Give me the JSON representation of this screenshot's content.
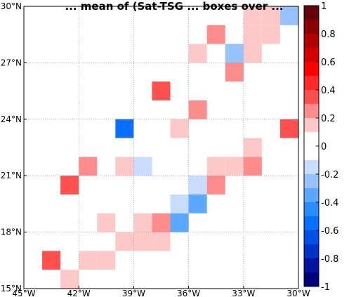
{
  "chart_data": {
    "type": "heatmap",
    "title": "... mean of (Sat-TSG ... boxes over ...",
    "xlabel": "",
    "ylabel": "",
    "x_ticks": [
      "45°W",
      "42°W",
      "39°W",
      "36°W",
      "33°W",
      "30°W"
    ],
    "y_ticks": [
      "15°N",
      "18°N",
      "21°N",
      "24°N",
      "27°N",
      "30°N"
    ],
    "xlim": [
      -45,
      -30
    ],
    "ylim": [
      15,
      30
    ],
    "grid": true,
    "grid_style": "dotted",
    "cell_size_deg": 1,
    "colorbar": {
      "ticks": [
        "1",
        "0.8",
        "0.6",
        "0.4",
        "0.2",
        "0",
        "-0.2",
        "-0.4",
        "-0.6",
        "-0.8",
        "-1"
      ],
      "range": [
        -1,
        1
      ],
      "levels": [
        {
          "from": 0.9,
          "to": 1.0,
          "color": "#67000d"
        },
        {
          "from": 0.8,
          "to": 0.9,
          "color": "#8b0000"
        },
        {
          "from": 0.7,
          "to": 0.8,
          "color": "#b00000"
        },
        {
          "from": 0.6,
          "to": 0.7,
          "color": "#d40000"
        },
        {
          "from": 0.5,
          "to": 0.6,
          "color": "#ff0000"
        },
        {
          "from": 0.4,
          "to": 0.5,
          "color": "#ff2a2a"
        },
        {
          "from": 0.3,
          "to": 0.4,
          "color": "#ff5050"
        },
        {
          "from": 0.2,
          "to": 0.3,
          "color": "#ff8c8c"
        },
        {
          "from": 0.1,
          "to": 0.2,
          "color": "#ffc8c8"
        },
        {
          "from": -0.1,
          "to": 0.1,
          "color": "#ffffff"
        },
        {
          "from": -0.2,
          "to": -0.1,
          "color": "#c8dcff"
        },
        {
          "from": -0.3,
          "to": -0.2,
          "color": "#96c3ff"
        },
        {
          "from": -0.4,
          "to": -0.3,
          "color": "#5aa8ff"
        },
        {
          "from": -0.5,
          "to": -0.4,
          "color": "#2a8cff"
        },
        {
          "from": -0.6,
          "to": -0.5,
          "color": "#0a6eff"
        },
        {
          "from": -0.7,
          "to": -0.6,
          "color": "#0050e6"
        },
        {
          "from": -0.8,
          "to": -0.7,
          "color": "#0032c8"
        },
        {
          "from": -0.9,
          "to": -0.8,
          "color": "#0014a0"
        },
        {
          "from": -1.0,
          "to": -0.9,
          "color": "#00007d"
        }
      ]
    },
    "cells": [
      {
        "lon": -44,
        "lat": 16,
        "value": 0.35
      },
      {
        "lon": -43,
        "lat": 15,
        "value": 0.15
      },
      {
        "lon": -42,
        "lat": 16,
        "value": 0.15
      },
      {
        "lon": -41,
        "lat": 16,
        "value": 0.15
      },
      {
        "lon": -40,
        "lat": 17,
        "value": 0.15
      },
      {
        "lon": -39,
        "lat": 17,
        "value": 0.15
      },
      {
        "lon": -38,
        "lat": 17,
        "value": 0.15
      },
      {
        "lon": -41,
        "lat": 18,
        "value": 0.15
      },
      {
        "lon": -39,
        "lat": 18,
        "value": 0.15
      },
      {
        "lon": -38,
        "lat": 18,
        "value": 0.25
      },
      {
        "lon": -37,
        "lat": 18,
        "value": -0.35
      },
      {
        "lon": -37,
        "lat": 19,
        "value": -0.15
      },
      {
        "lon": -36,
        "lat": 19,
        "value": -0.35
      },
      {
        "lon": -36,
        "lat": 20,
        "value": -0.15
      },
      {
        "lon": -35,
        "lat": 20,
        "value": 0.25
      },
      {
        "lon": -43,
        "lat": 20,
        "value": 0.35
      },
      {
        "lon": -42,
        "lat": 21,
        "value": 0.25
      },
      {
        "lon": -40,
        "lat": 21,
        "value": 0.15
      },
      {
        "lon": -39,
        "lat": 21,
        "value": -0.15
      },
      {
        "lon": -35,
        "lat": 21,
        "value": 0.15
      },
      {
        "lon": -34,
        "lat": 21,
        "value": 0.15
      },
      {
        "lon": -33,
        "lat": 21,
        "value": 0.25
      },
      {
        "lon": -33,
        "lat": 22,
        "value": 0.15
      },
      {
        "lon": -40,
        "lat": 23,
        "value": -0.55
      },
      {
        "lon": -37,
        "lat": 23,
        "value": 0.15
      },
      {
        "lon": -31,
        "lat": 23,
        "value": 0.35
      },
      {
        "lon": -36,
        "lat": 24,
        "value": 0.25
      },
      {
        "lon": -38,
        "lat": 25,
        "value": 0.35
      },
      {
        "lon": -34,
        "lat": 26,
        "value": 0.25
      },
      {
        "lon": -36,
        "lat": 27,
        "value": 0.15
      },
      {
        "lon": -34,
        "lat": 27,
        "value": -0.25
      },
      {
        "lon": -33,
        "lat": 27,
        "value": 0.15
      },
      {
        "lon": -35,
        "lat": 28,
        "value": 0.25
      },
      {
        "lon": -33,
        "lat": 28,
        "value": 0.15
      },
      {
        "lon": -32,
        "lat": 28,
        "value": 0.15
      },
      {
        "lon": -33,
        "lat": 29,
        "value": 0.15
      },
      {
        "lon": -32,
        "lat": 29,
        "value": 0.15
      },
      {
        "lon": -31,
        "lat": 29,
        "value": -0.25
      }
    ]
  }
}
